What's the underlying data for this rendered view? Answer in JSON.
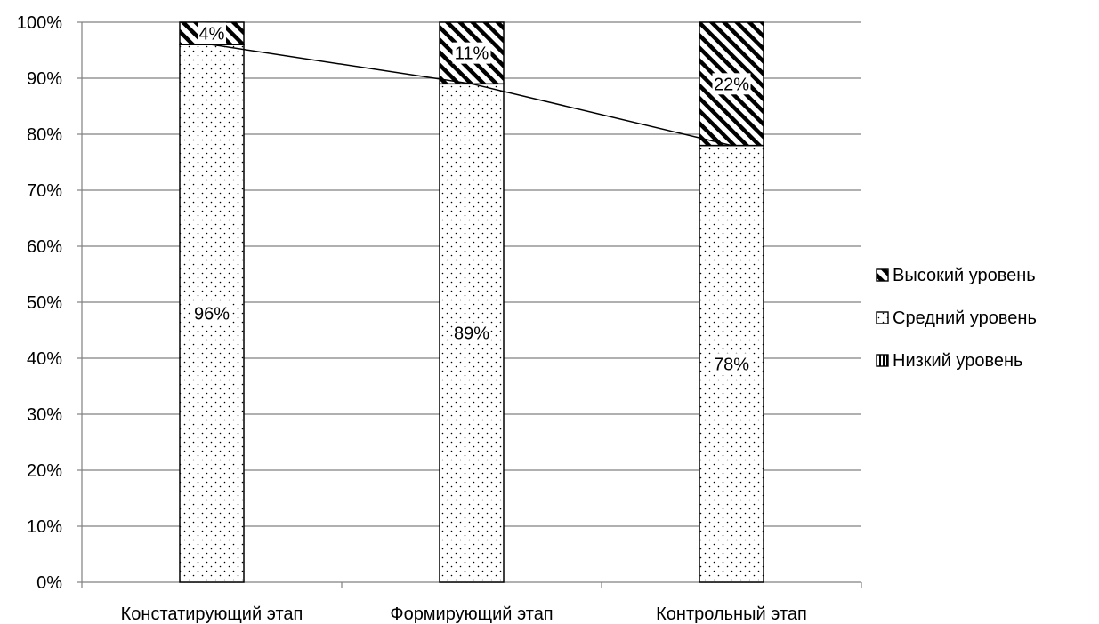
{
  "chart_data": {
    "type": "bar",
    "stacked": true,
    "percent": true,
    "categories": [
      "Констатирующий этап",
      "Формирующий этап",
      "Контрольный этап"
    ],
    "series": [
      {
        "name": "Низкий уровень",
        "values": [
          0,
          0,
          0
        ],
        "pattern": "vertical-stripes",
        "labels": [
          "",
          "",
          ""
        ]
      },
      {
        "name": "Средний уровень",
        "values": [
          96,
          89,
          78
        ],
        "pattern": "dots",
        "labels": [
          "96%",
          "89%",
          "78%"
        ]
      },
      {
        "name": "Высокий уровень",
        "values": [
          4,
          11,
          22
        ],
        "pattern": "diagonal-hatch",
        "labels": [
          "4%",
          "11%",
          "22%"
        ]
      }
    ],
    "trend_line": {
      "values": [
        96,
        89,
        78
      ]
    },
    "ylim": [
      0,
      100
    ],
    "yticks": [
      "0%",
      "10%",
      "20%",
      "30%",
      "40%",
      "50%",
      "60%",
      "70%",
      "80%",
      "90%",
      "100%"
    ],
    "grid": true,
    "legend": {
      "position": "right",
      "order": [
        "Высокий уровень",
        "Средний уровень",
        "Низкий уровень"
      ]
    },
    "colors": {
      "axis": "#808080",
      "grid": "#808080",
      "bar_stroke": "#000000",
      "text": "#000000"
    }
  }
}
